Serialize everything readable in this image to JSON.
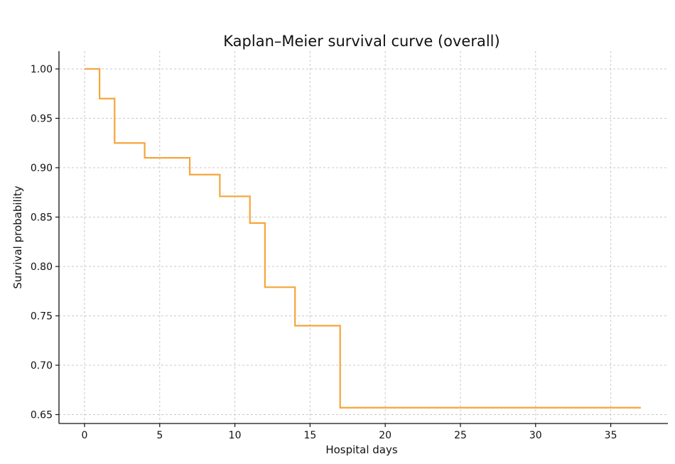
{
  "chart_data": {
    "type": "line",
    "title": "Kaplan–Meier survival curve (overall)",
    "xlabel": "Hospital days",
    "ylabel": "Survival probability",
    "xlim": [
      -1.7,
      38.8
    ],
    "ylim": [
      0.641,
      1.018
    ],
    "xticks": [
      0,
      5,
      10,
      15,
      20,
      25,
      30,
      35
    ],
    "yticks": [
      0.65,
      0.7,
      0.75,
      0.8,
      0.85,
      0.9,
      0.95,
      1.0
    ],
    "ytick_labels": [
      "0.65",
      "0.70",
      "0.75",
      "0.80",
      "0.85",
      "0.90",
      "0.95",
      "1.00"
    ],
    "grid": true,
    "step": "post",
    "line_color": "#f6a53b",
    "series": [
      {
        "x": [
          0,
          1,
          2,
          4,
          7,
          9,
          11,
          12,
          14,
          17,
          37
        ],
        "y": [
          1.0,
          0.97,
          0.925,
          0.91,
          0.893,
          0.871,
          0.844,
          0.779,
          0.74,
          0.657,
          0.657
        ]
      }
    ]
  }
}
